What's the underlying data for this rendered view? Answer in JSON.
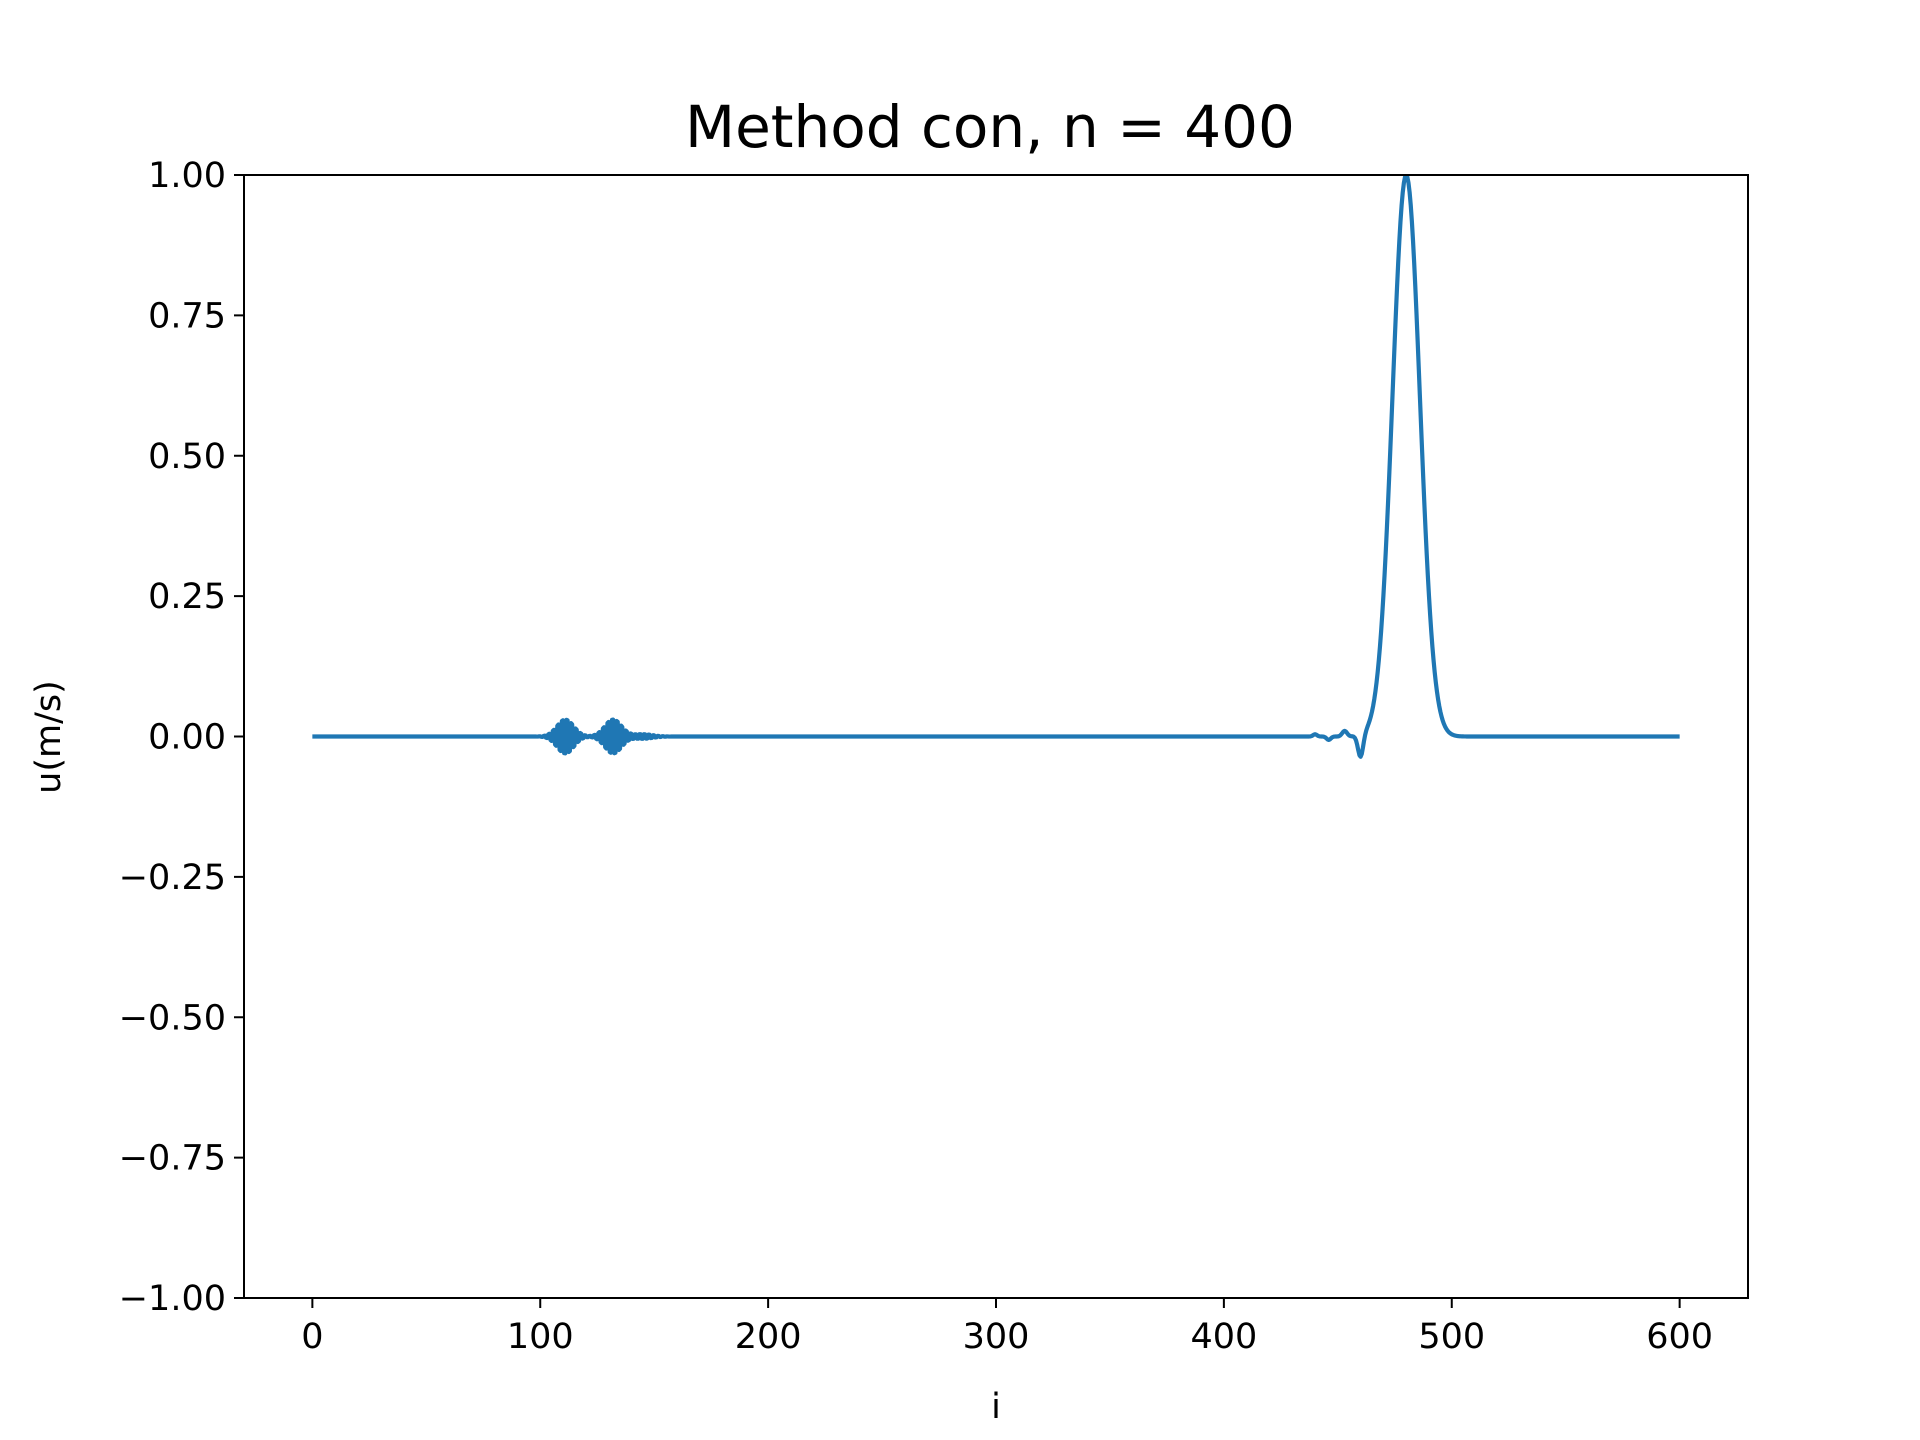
{
  "chart_data": {
    "type": "line",
    "title": "Method con,  n = 400",
    "xlabel": "i",
    "ylabel": "u(m/s)",
    "xlim": [
      -30,
      630
    ],
    "ylim": [
      -1.0,
      1.0
    ],
    "xticks": [
      0,
      100,
      200,
      300,
      400,
      500,
      600
    ],
    "xtick_labels": [
      "0",
      "100",
      "200",
      "300",
      "400",
      "500",
      "600"
    ],
    "yticks": [
      1.0,
      0.75,
      0.5,
      0.25,
      0.0,
      -0.25,
      -0.5,
      -0.75,
      -1.0
    ],
    "ytick_labels": [
      "1.00",
      "0.75",
      "0.50",
      "0.25",
      "0.00",
      "−0.25",
      "−0.50",
      "−0.75",
      "−1.00"
    ],
    "grid": false,
    "series": [
      {
        "name": "u",
        "color": "#1f77b4",
        "x_range": [
          0,
          600
        ],
        "description_points": {
          "peak": {
            "x": 480,
            "y": 1.0
          },
          "trough": {
            "x": 460,
            "y": -0.04
          },
          "small_bump": {
            "x": 453,
            "y": 0.01
          },
          "oscillation_packets": [
            {
              "center": 111,
              "amplitude": 0.03
            },
            {
              "center": 132,
              "amplitude": 0.03
            }
          ]
        }
      }
    ]
  }
}
